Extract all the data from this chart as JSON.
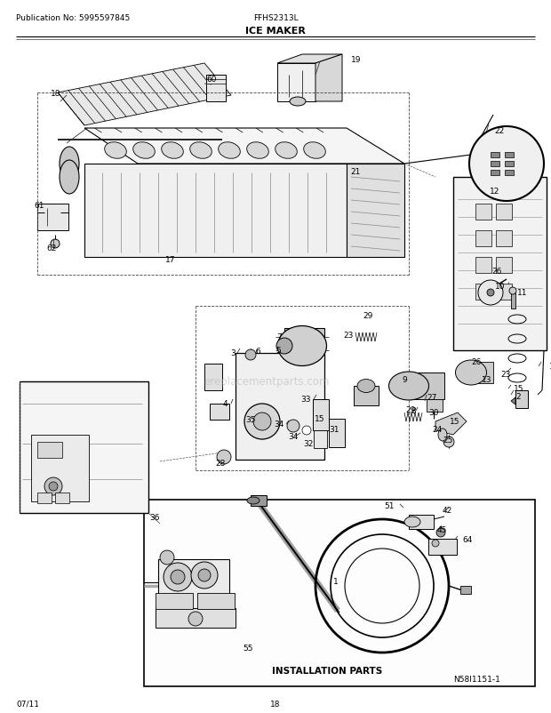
{
  "pub_no": "Publication No: 5995597845",
  "model": "FFHS2313L",
  "title": "ICE MAKER",
  "diagram_id": "N58I1151-1",
  "date": "07/11",
  "page": "18",
  "watermark": "ereplacementparts.com",
  "installation_parts_label": "INSTALLATION PARTS",
  "bg_color": "#ffffff",
  "fig_width": 6.2,
  "fig_height": 8.03,
  "dpi": 100
}
